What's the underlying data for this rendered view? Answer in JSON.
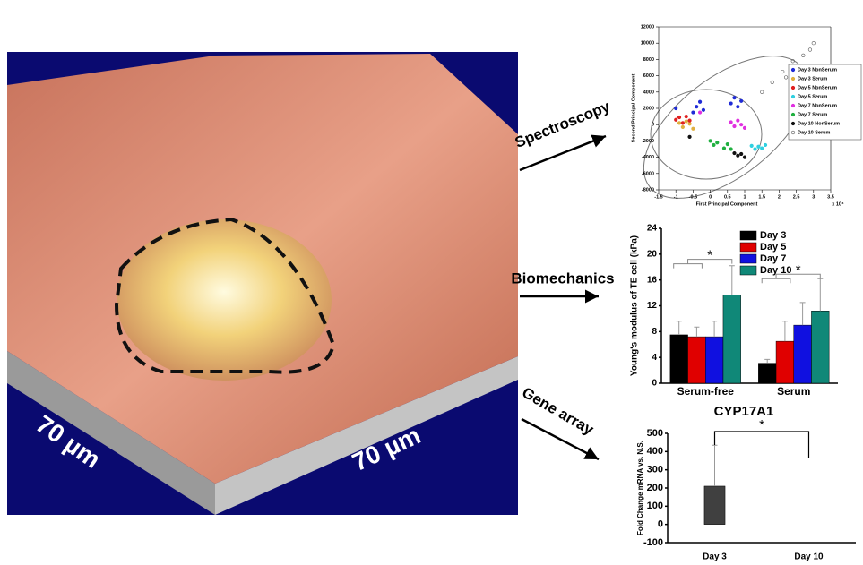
{
  "figure": {
    "scale_labels": [
      "70 µm",
      "70 µm"
    ],
    "methods": [
      "Spectroscopy",
      "Biomechanics",
      "Gene array"
    ]
  },
  "chart_data": [
    {
      "type": "scatter",
      "x_label": "First Principal Component",
      "y_label": "Second Principal Component",
      "x_note": "x 10⁴",
      "xlim": [
        -1.5,
        3.5
      ],
      "xticks": [
        -1.5,
        -1,
        -0.5,
        0,
        0.5,
        1,
        1.5,
        2,
        2.5,
        3,
        3.5
      ],
      "ylim": [
        -8000,
        12000
      ],
      "yticks": [
        -8000,
        -6000,
        -4000,
        -2000,
        0,
        2000,
        4000,
        6000,
        8000,
        10000,
        12000
      ],
      "series": [
        {
          "name": "Day 3 NonSerum",
          "color": "#1f2bd6",
          "x": [
            -0.5,
            -0.4,
            -0.3,
            -0.2,
            0.6,
            0.7,
            0.8,
            0.9,
            -1.0
          ],
          "values": [
            1500,
            2200,
            2800,
            1800,
            2600,
            3300,
            2200,
            2900,
            2000
          ]
        },
        {
          "name": "Day 3 Serum",
          "color": "#e0b040",
          "x": [
            -0.8,
            -0.7,
            -0.6,
            -0.5,
            -0.9
          ],
          "values": [
            -300,
            400,
            100,
            -500,
            200
          ]
        },
        {
          "name": "Day 5 NonSerum",
          "color": "#e02020",
          "x": [
            -1.0,
            -0.9,
            -0.8,
            -0.7,
            -0.6
          ],
          "values": [
            600,
            900,
            200,
            1000,
            500
          ]
        },
        {
          "name": "Day 5 Serum",
          "color": "#30d0e0",
          "x": [
            1.2,
            1.3,
            1.4,
            1.5,
            1.6
          ],
          "values": [
            -2600,
            -3000,
            -2700,
            -2900,
            -2500
          ]
        },
        {
          "name": "Day 7 NonSerum",
          "color": "#e030e0",
          "x": [
            0.6,
            0.7,
            0.8,
            0.9,
            1.0,
            -0.3
          ],
          "values": [
            300,
            -200,
            500,
            0,
            -400,
            1500
          ]
        },
        {
          "name": "Day 7 Serum",
          "color": "#20b040",
          "x": [
            0.0,
            0.1,
            0.2,
            0.4,
            0.5,
            0.6
          ],
          "values": [
            -2000,
            -2500,
            -2200,
            -2900,
            -2400,
            -3000
          ]
        },
        {
          "name": "Day 10 NonSerum",
          "color": "#111111",
          "x": [
            0.7,
            0.8,
            0.9,
            1.0,
            -0.6
          ],
          "values": [
            -3500,
            -3800,
            -3600,
            -4000,
            -1500
          ]
        },
        {
          "name": "Day 10 Serum",
          "color": "#555555",
          "marker": "open",
          "x": [
            1.5,
            1.8,
            2.1,
            2.4,
            2.7,
            3.0,
            2.9,
            2.2
          ],
          "values": [
            4000,
            5200,
            6500,
            7800,
            8500,
            10000,
            9200,
            5800
          ]
        }
      ]
    },
    {
      "type": "bar",
      "y_label": "Young's modulus of TE cell (kPa)",
      "categories": [
        "Serum-free",
        "Serum"
      ],
      "ylim": [
        0,
        24
      ],
      "yticks": [
        0,
        4,
        8,
        12,
        16,
        20,
        24
      ],
      "annotations": [
        "*",
        "*"
      ],
      "series": [
        {
          "name": "Day 3",
          "color": "#000000",
          "values": [
            7.5,
            3.1
          ],
          "errors": [
            2.1,
            0.6
          ]
        },
        {
          "name": "Day 5",
          "color": "#e00000",
          "values": [
            7.2,
            6.5
          ],
          "errors": [
            1.5,
            3.1
          ]
        },
        {
          "name": "Day 7",
          "color": "#1010e0",
          "values": [
            7.2,
            9.0
          ],
          "errors": [
            2.4,
            3.5
          ]
        },
        {
          "name": "Day 10",
          "color": "#108878",
          "values": [
            13.7,
            11.2
          ],
          "errors": [
            4.5,
            5.0
          ]
        }
      ]
    },
    {
      "type": "bar",
      "title": "CYP17A1",
      "y_label": "Fold Change mRNA vs. N.S.",
      "categories": [
        "Day 3",
        "Day 10"
      ],
      "ylim": [
        -100,
        500
      ],
      "yticks": [
        -100,
        0,
        100,
        200,
        300,
        400,
        500
      ],
      "annotations": [
        "*"
      ],
      "series": [
        {
          "color": "#404040",
          "values": [
            210,
            0
          ],
          "errors": [
            225,
            null
          ]
        }
      ]
    }
  ]
}
